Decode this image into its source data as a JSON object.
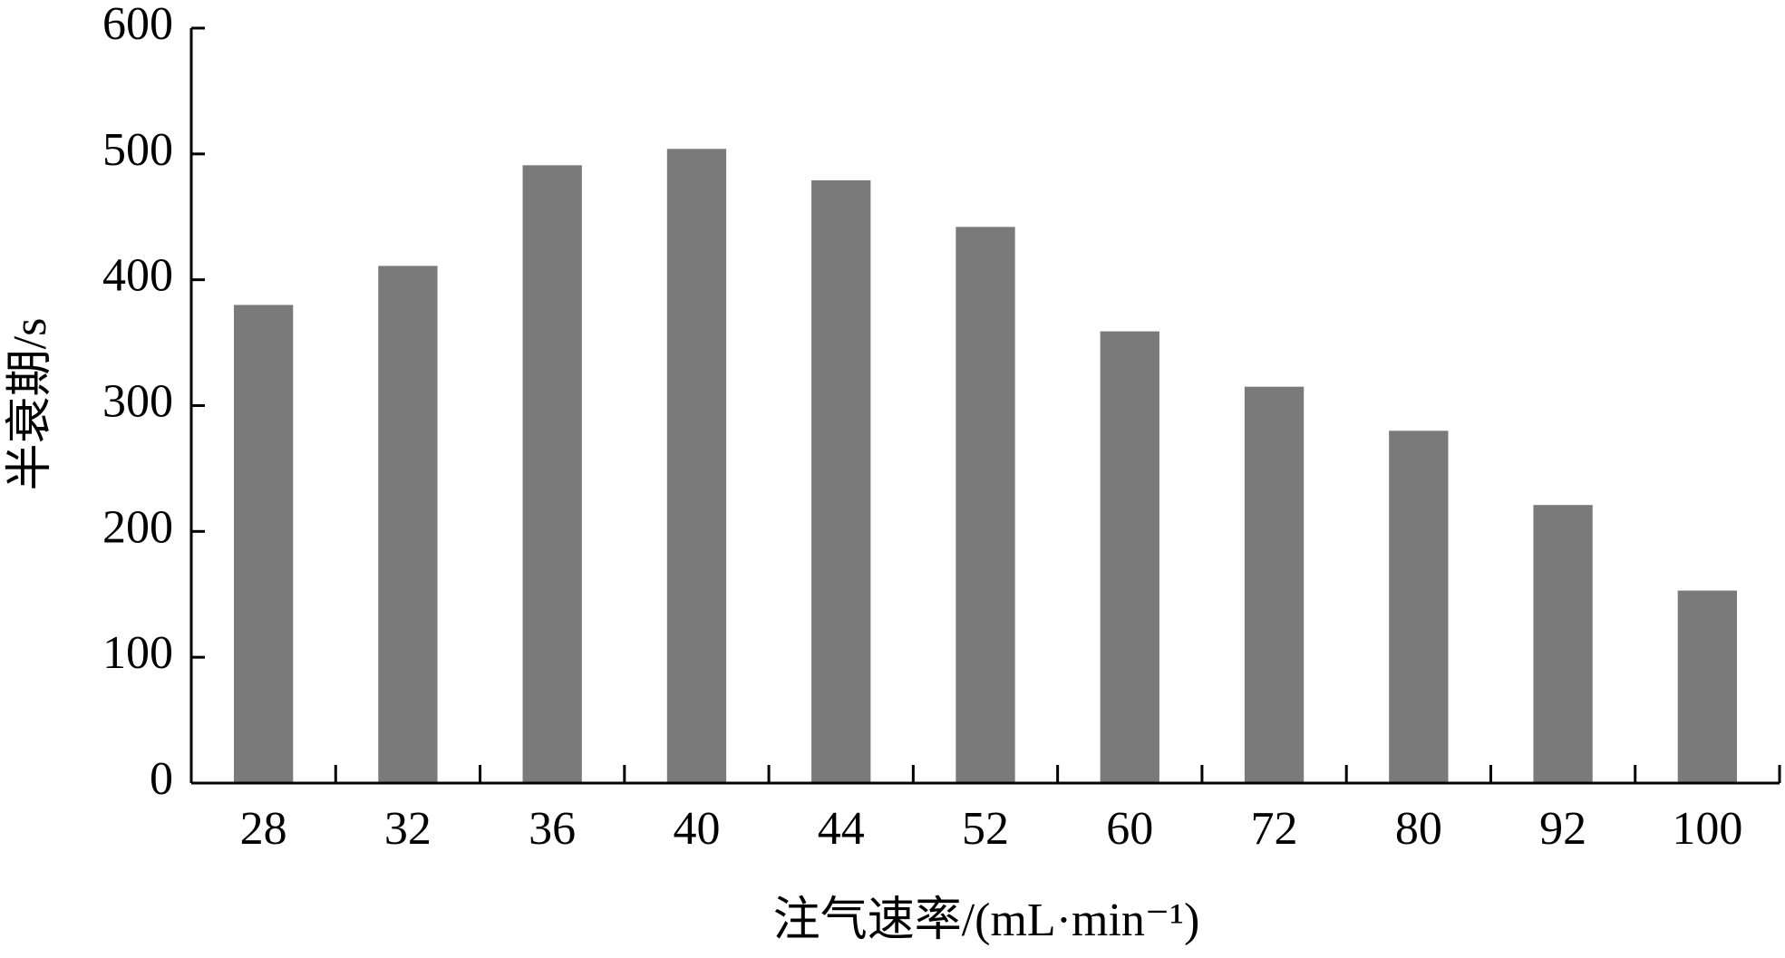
{
  "chart_data": {
    "type": "bar",
    "x_label": "注气速率/(mL·min⁻¹)",
    "y_label": "半衰期/s",
    "categories": [
      "28",
      "32",
      "36",
      "40",
      "44",
      "52",
      "60",
      "72",
      "80",
      "92",
      "100"
    ],
    "values": [
      380,
      411,
      491,
      504,
      479,
      442,
      359,
      315,
      280,
      221,
      153
    ],
    "color": "#7a7a7a",
    "ylim": [
      0,
      600
    ],
    "yticks": [
      0,
      100,
      200,
      300,
      400,
      500,
      600
    ],
    "grid": false
  }
}
